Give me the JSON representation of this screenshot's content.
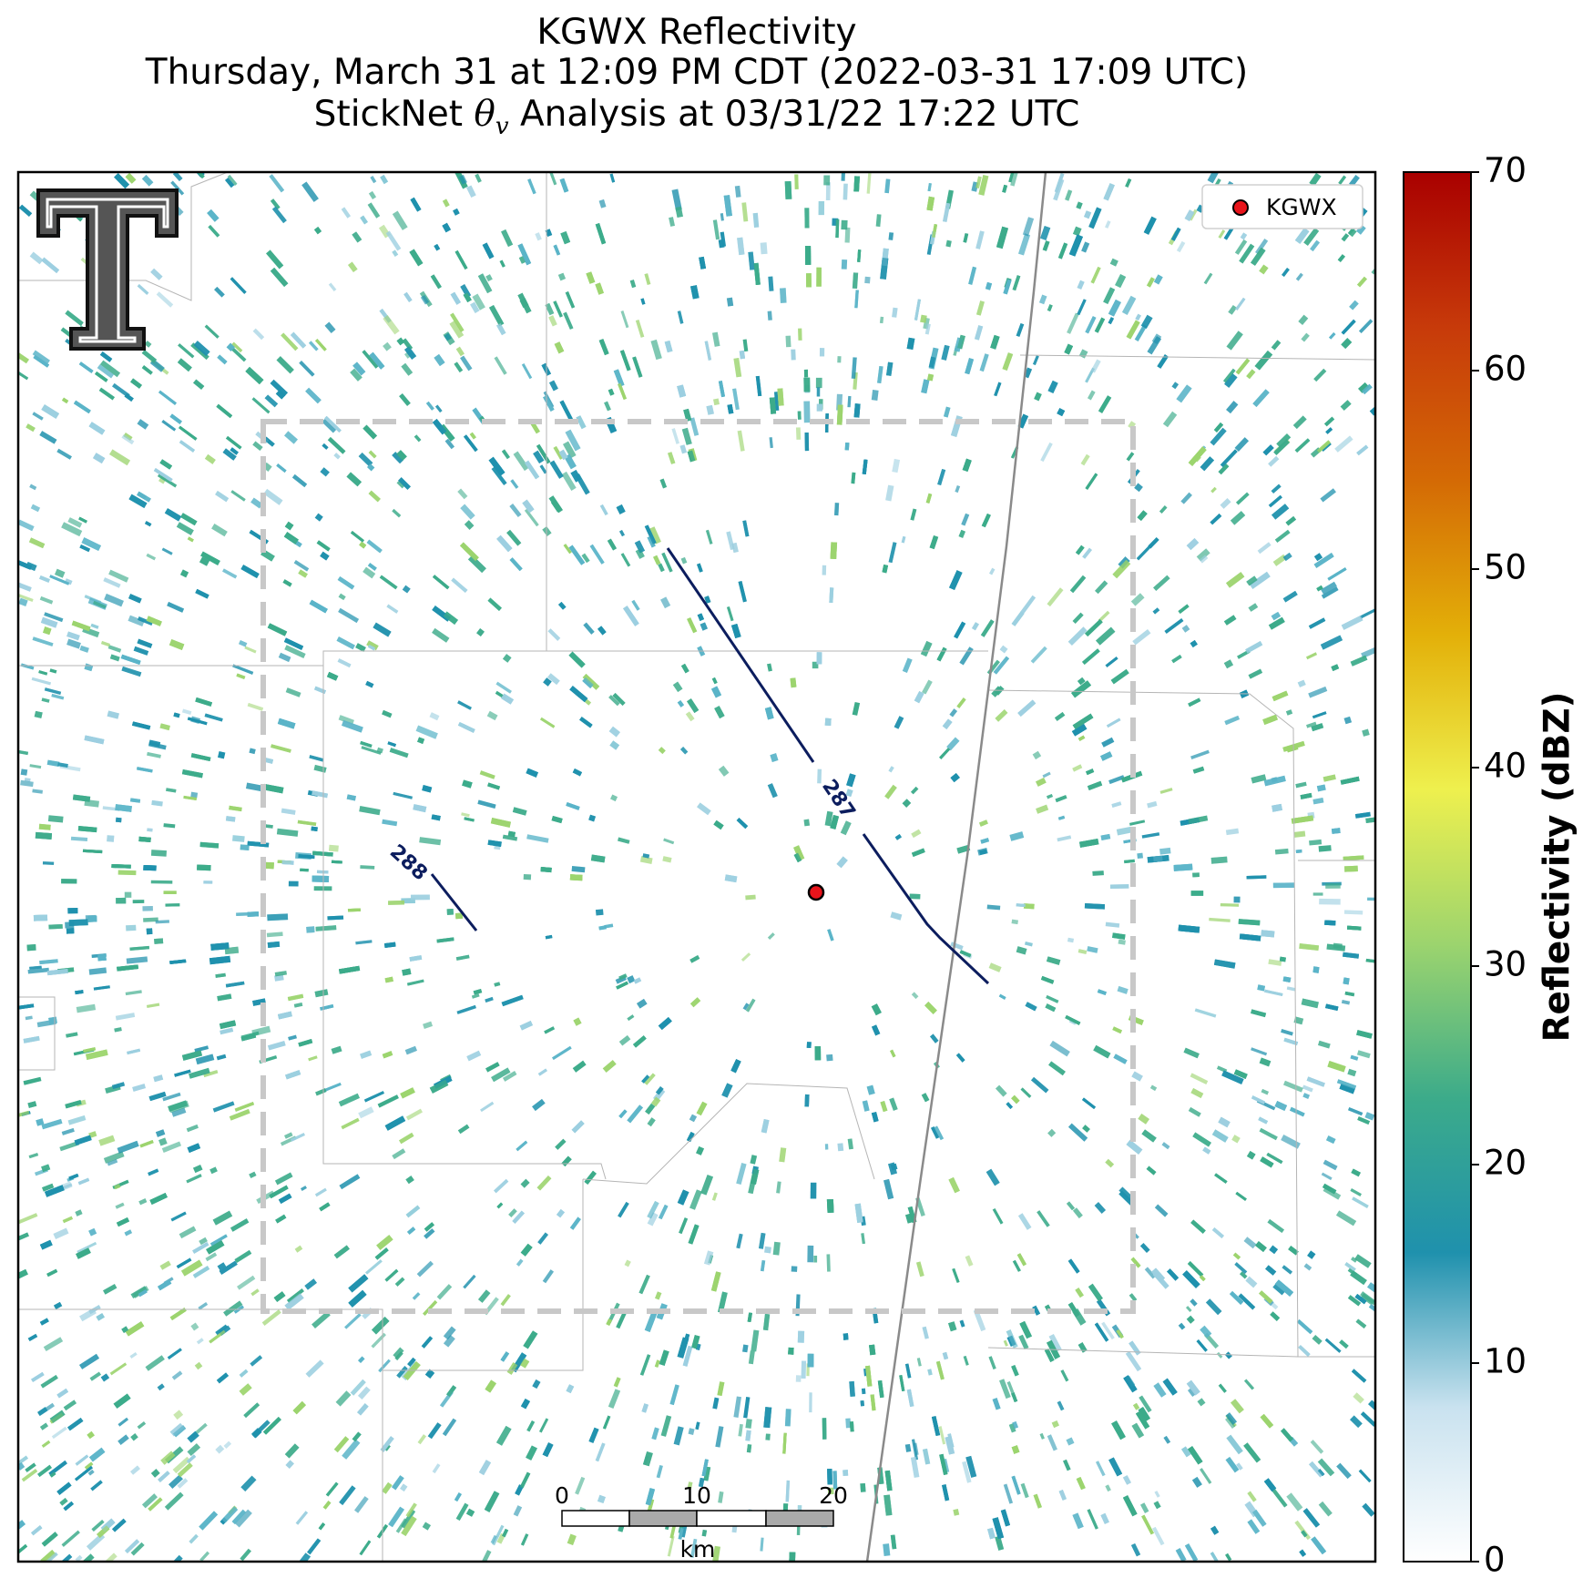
{
  "title": {
    "line1": "KGWX Reflectivity",
    "line2": "Thursday, March 31 at 12:09 PM CDT (2022-03-31 17:09 UTC)",
    "line3_prefix": "StickNet ",
    "line3_symbol": "θ",
    "line3_subscript": "v",
    "line3_suffix": " Analysis at 03/31/22 17:22 UTC"
  },
  "legend": {
    "entries": [
      {
        "label": "KGWX",
        "marker_color": "#e8141b"
      }
    ]
  },
  "colorbar": {
    "label": "Reflectivity (dBZ)",
    "ticks": [
      "0",
      "10",
      "20",
      "30",
      "40",
      "50",
      "60",
      "70"
    ],
    "range": [
      0,
      70
    ],
    "colors": [
      "#ffffff",
      "#c9e2ef",
      "#1f91ad",
      "#3cab8a",
      "#9cd46e",
      "#eef04e",
      "#e3b009",
      "#d46a05",
      "#c73a0a",
      "#a90000"
    ]
  },
  "contours": [
    {
      "label": "287",
      "color": "#0c1d5e"
    },
    {
      "label": "288",
      "color": "#0c1d5e"
    }
  ],
  "scalebar": {
    "ticks": [
      "0",
      "10",
      "20"
    ],
    "unit": "km"
  },
  "logo": {
    "icon": "texas-tech-double-t-logo"
  },
  "colors": {
    "echo_low": "#1f91ad",
    "echo_mid": "#3cab8a",
    "echo_high": "#9cd46e",
    "domain_box": "#c8c8c8",
    "highway": "#8a8a8a",
    "county_line": "#b5b5b5"
  }
}
